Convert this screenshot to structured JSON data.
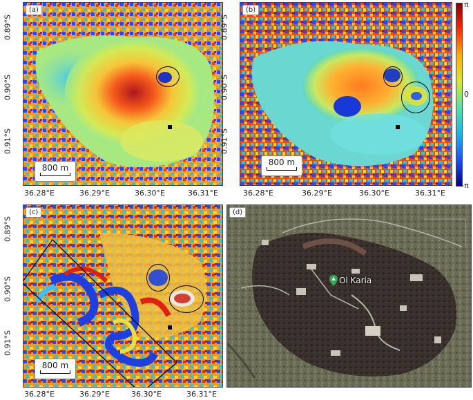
{
  "panels": {
    "a": {
      "tag": "(a)",
      "scale_label": "800 m"
    },
    "b": {
      "tag": "(b)",
      "scale_label": "800 m"
    },
    "c": {
      "tag": "(c)",
      "scale_label": "800 m"
    },
    "d": {
      "tag": "(d)",
      "place_label": "Ol Karia"
    }
  },
  "axes": {
    "y_ticks": [
      "0.89°S",
      "0.90°S",
      "0.91°S"
    ],
    "x_ticks": [
      "36.28°E",
      "36.29°E",
      "36.30°E",
      "36.31°E"
    ]
  },
  "colorbar": {
    "top": "π",
    "middle": "0",
    "bottom": "-π"
  }
}
